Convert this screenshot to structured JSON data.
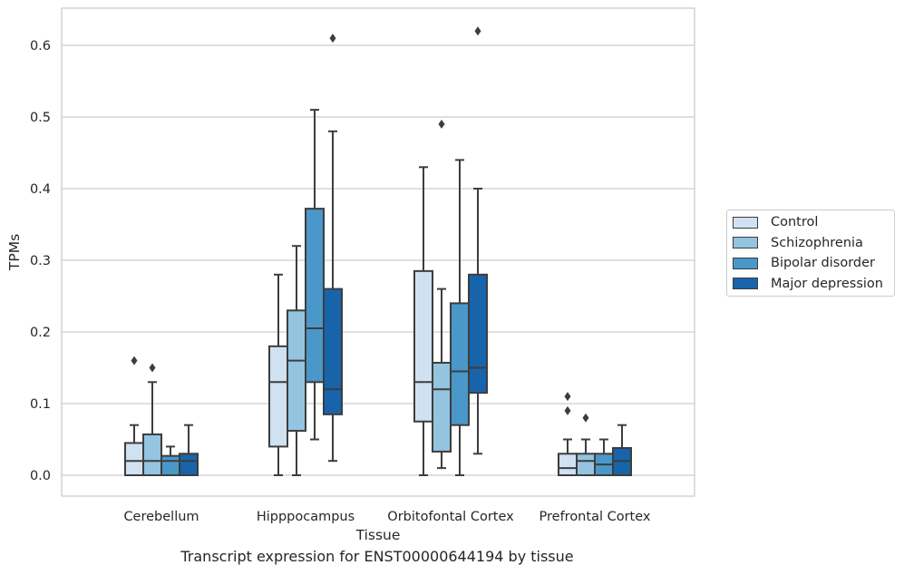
{
  "chart_data": {
    "type": "box",
    "title": "",
    "caption": "Transcript expression for ENST00000644194 by tissue",
    "xlabel": "Tissue",
    "ylabel": "TPMs",
    "ylim": [
      -0.03,
      0.655
    ],
    "yticks": [
      "0.0",
      "0.1",
      "0.2",
      "0.3",
      "0.4",
      "0.5",
      "0.6"
    ],
    "ytick_values": [
      0,
      0.1,
      0.2,
      0.3,
      0.4,
      0.5,
      0.6
    ],
    "grid": "horizontal",
    "legend_position": "right",
    "categories": [
      "Cerebellum",
      "Hipppocampus",
      "Orbitofontal Cortex",
      "Prefrontal Cortex"
    ],
    "series": [
      {
        "name": "Control",
        "color": "#d0e1f2",
        "boxes": [
          {
            "min": 0,
            "q1": 0,
            "median": 0.02,
            "q3": 0.045,
            "max": 0.07,
            "outliers": [
              0.16
            ]
          },
          {
            "min": 0,
            "q1": 0.04,
            "median": 0.13,
            "q3": 0.18,
            "max": 0.28,
            "outliers": []
          },
          {
            "min": 0,
            "q1": 0.075,
            "median": 0.13,
            "q3": 0.285,
            "max": 0.43,
            "outliers": []
          },
          {
            "min": 0,
            "q1": 0,
            "median": 0.01,
            "q3": 0.03,
            "max": 0.05,
            "outliers": [
              0.09,
              0.11
            ]
          }
        ]
      },
      {
        "name": "Schizophrenia",
        "color": "#94c4df",
        "boxes": [
          {
            "min": 0,
            "q1": 0,
            "median": 0.02,
            "q3": 0.057,
            "max": 0.13,
            "outliers": [
              0.15
            ]
          },
          {
            "min": 0,
            "q1": 0.062,
            "median": 0.16,
            "q3": 0.23,
            "max": 0.32,
            "outliers": []
          },
          {
            "min": 0.01,
            "q1": 0.033,
            "median": 0.12,
            "q3": 0.157,
            "max": 0.26,
            "outliers": [
              0.49
            ]
          },
          {
            "min": 0,
            "q1": 0,
            "median": 0.02,
            "q3": 0.03,
            "max": 0.05,
            "outliers": [
              0.08
            ]
          }
        ]
      },
      {
        "name": "Bipolar disorder",
        "color": "#4a98c9",
        "boxes": [
          {
            "min": 0,
            "q1": 0,
            "median": 0.02,
            "q3": 0.027,
            "max": 0.04,
            "outliers": []
          },
          {
            "min": 0.05,
            "q1": 0.13,
            "median": 0.205,
            "q3": 0.372,
            "max": 0.51,
            "outliers": []
          },
          {
            "min": 0,
            "q1": 0.07,
            "median": 0.145,
            "q3": 0.24,
            "max": 0.44,
            "outliers": []
          },
          {
            "min": 0,
            "q1": 0,
            "median": 0.015,
            "q3": 0.03,
            "max": 0.05,
            "outliers": []
          }
        ]
      },
      {
        "name": "Major depression",
        "color": "#1764ab",
        "boxes": [
          {
            "min": 0,
            "q1": 0,
            "median": 0.02,
            "q3": 0.03,
            "max": 0.07,
            "outliers": []
          },
          {
            "min": 0.02,
            "q1": 0.085,
            "median": 0.12,
            "q3": 0.26,
            "max": 0.48,
            "outliers": [
              0.61
            ]
          },
          {
            "min": 0.03,
            "q1": 0.115,
            "median": 0.15,
            "q3": 0.28,
            "max": 0.4,
            "outliers": [
              0.62
            ]
          },
          {
            "min": 0,
            "q1": 0,
            "median": 0.02,
            "q3": 0.038,
            "max": 0.07,
            "outliers": []
          }
        ]
      }
    ]
  }
}
